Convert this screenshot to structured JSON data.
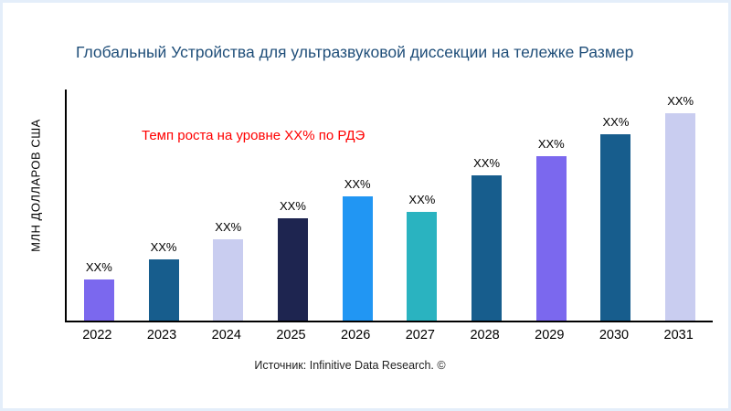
{
  "header": {
    "title_color": "#1f4e79"
  },
  "chart_data": {
    "type": "bar",
    "title": "Глобальный Устройства для ультразвуковой диссекции на тележке Размер",
    "ylabel": "МЛН ДОЛЛАРОВ США",
    "xlabel": "",
    "categories": [
      "2022",
      "2023",
      "2024",
      "2025",
      "2026",
      "2027",
      "2028",
      "2029",
      "2030",
      "2031"
    ],
    "values": [
      45,
      67,
      89,
      112,
      136,
      119,
      159,
      180,
      204,
      227
    ],
    "values_note": "relative bar heights; y-axis is unlabeled in the figure",
    "value_labels": [
      "XX%",
      "XX%",
      "XX%",
      "XX%",
      "XX%",
      "XX%",
      "XX%",
      "XX%",
      "XX%",
      "XX%"
    ],
    "bar_colors": [
      "#7b68ee",
      "#175d8d",
      "#c9cdf0",
      "#1e2550",
      "#2196f3",
      "#2ab3c0",
      "#175d8d",
      "#7b68ee",
      "#175d8d",
      "#c9cdf0"
    ],
    "axis_color": "#000000",
    "grid": "off",
    "legend": "none",
    "annotation": {
      "text": "Темп роста на уровне XX% по РДЭ",
      "color": "#ff0000"
    }
  },
  "footer": {
    "source": "Источник: Infinitive Data Research. ©"
  }
}
